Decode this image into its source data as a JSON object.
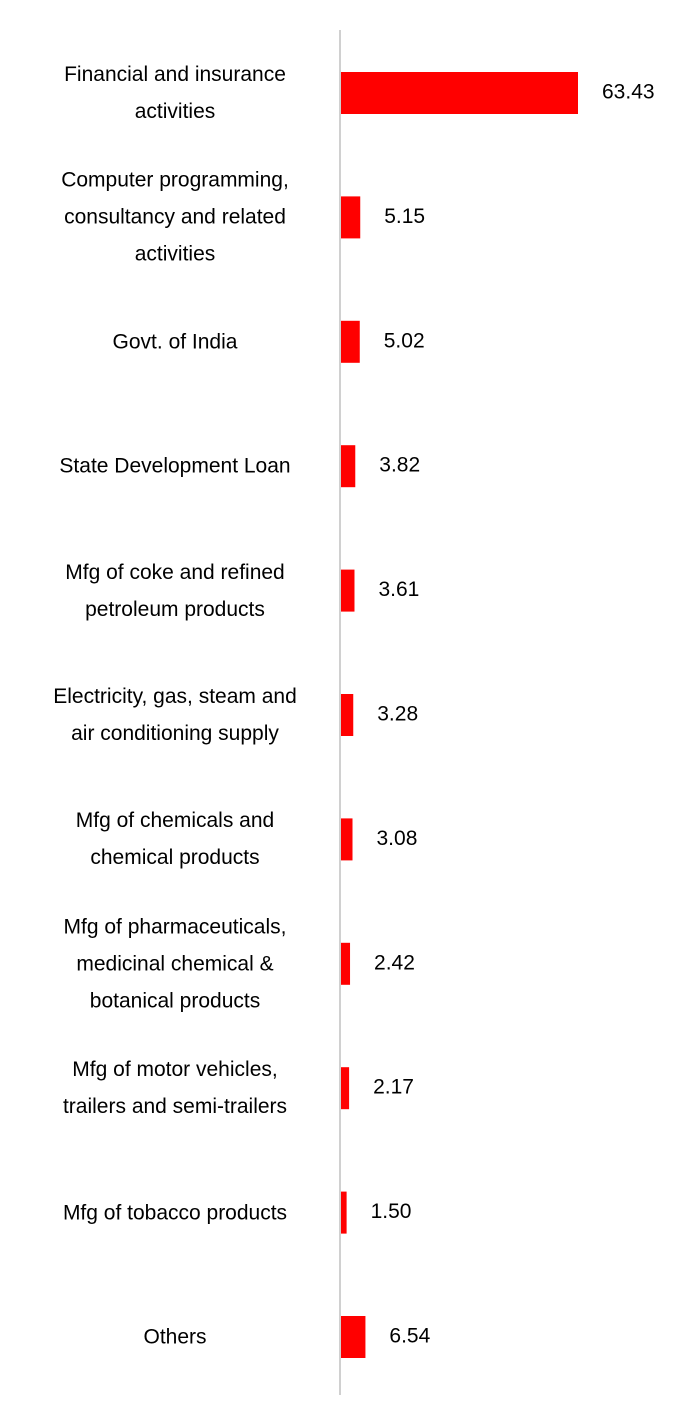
{
  "chart_data": {
    "type": "hbar",
    "categories": [
      "Financial and insurance\nactivities",
      "Computer programming,\nconsultancy and related\nactivities",
      "Govt. of India",
      "State Development Loan",
      "Mfg of coke and refined\npetroleum products",
      "Electricity, gas, steam and\nair conditioning supply",
      "Mfg of chemicals and\nchemical products",
      "Mfg of pharmaceuticals,\nmedicinal chemical &\nbotanical products",
      "Mfg of motor vehicles,\ntrailers and semi-trailers",
      "Mfg of tobacco products",
      "Others"
    ],
    "values": [
      63.43,
      5.15,
      5.02,
      3.82,
      3.61,
      3.28,
      3.08,
      2.42,
      2.17,
      1.5,
      6.54
    ],
    "value_labels": [
      "63.43",
      "5.15",
      "5.02",
      "3.82",
      "3.61",
      "3.28",
      "3.08",
      "2.42",
      "2.17",
      "1.50",
      "6.54"
    ],
    "color": "#ff0000"
  }
}
